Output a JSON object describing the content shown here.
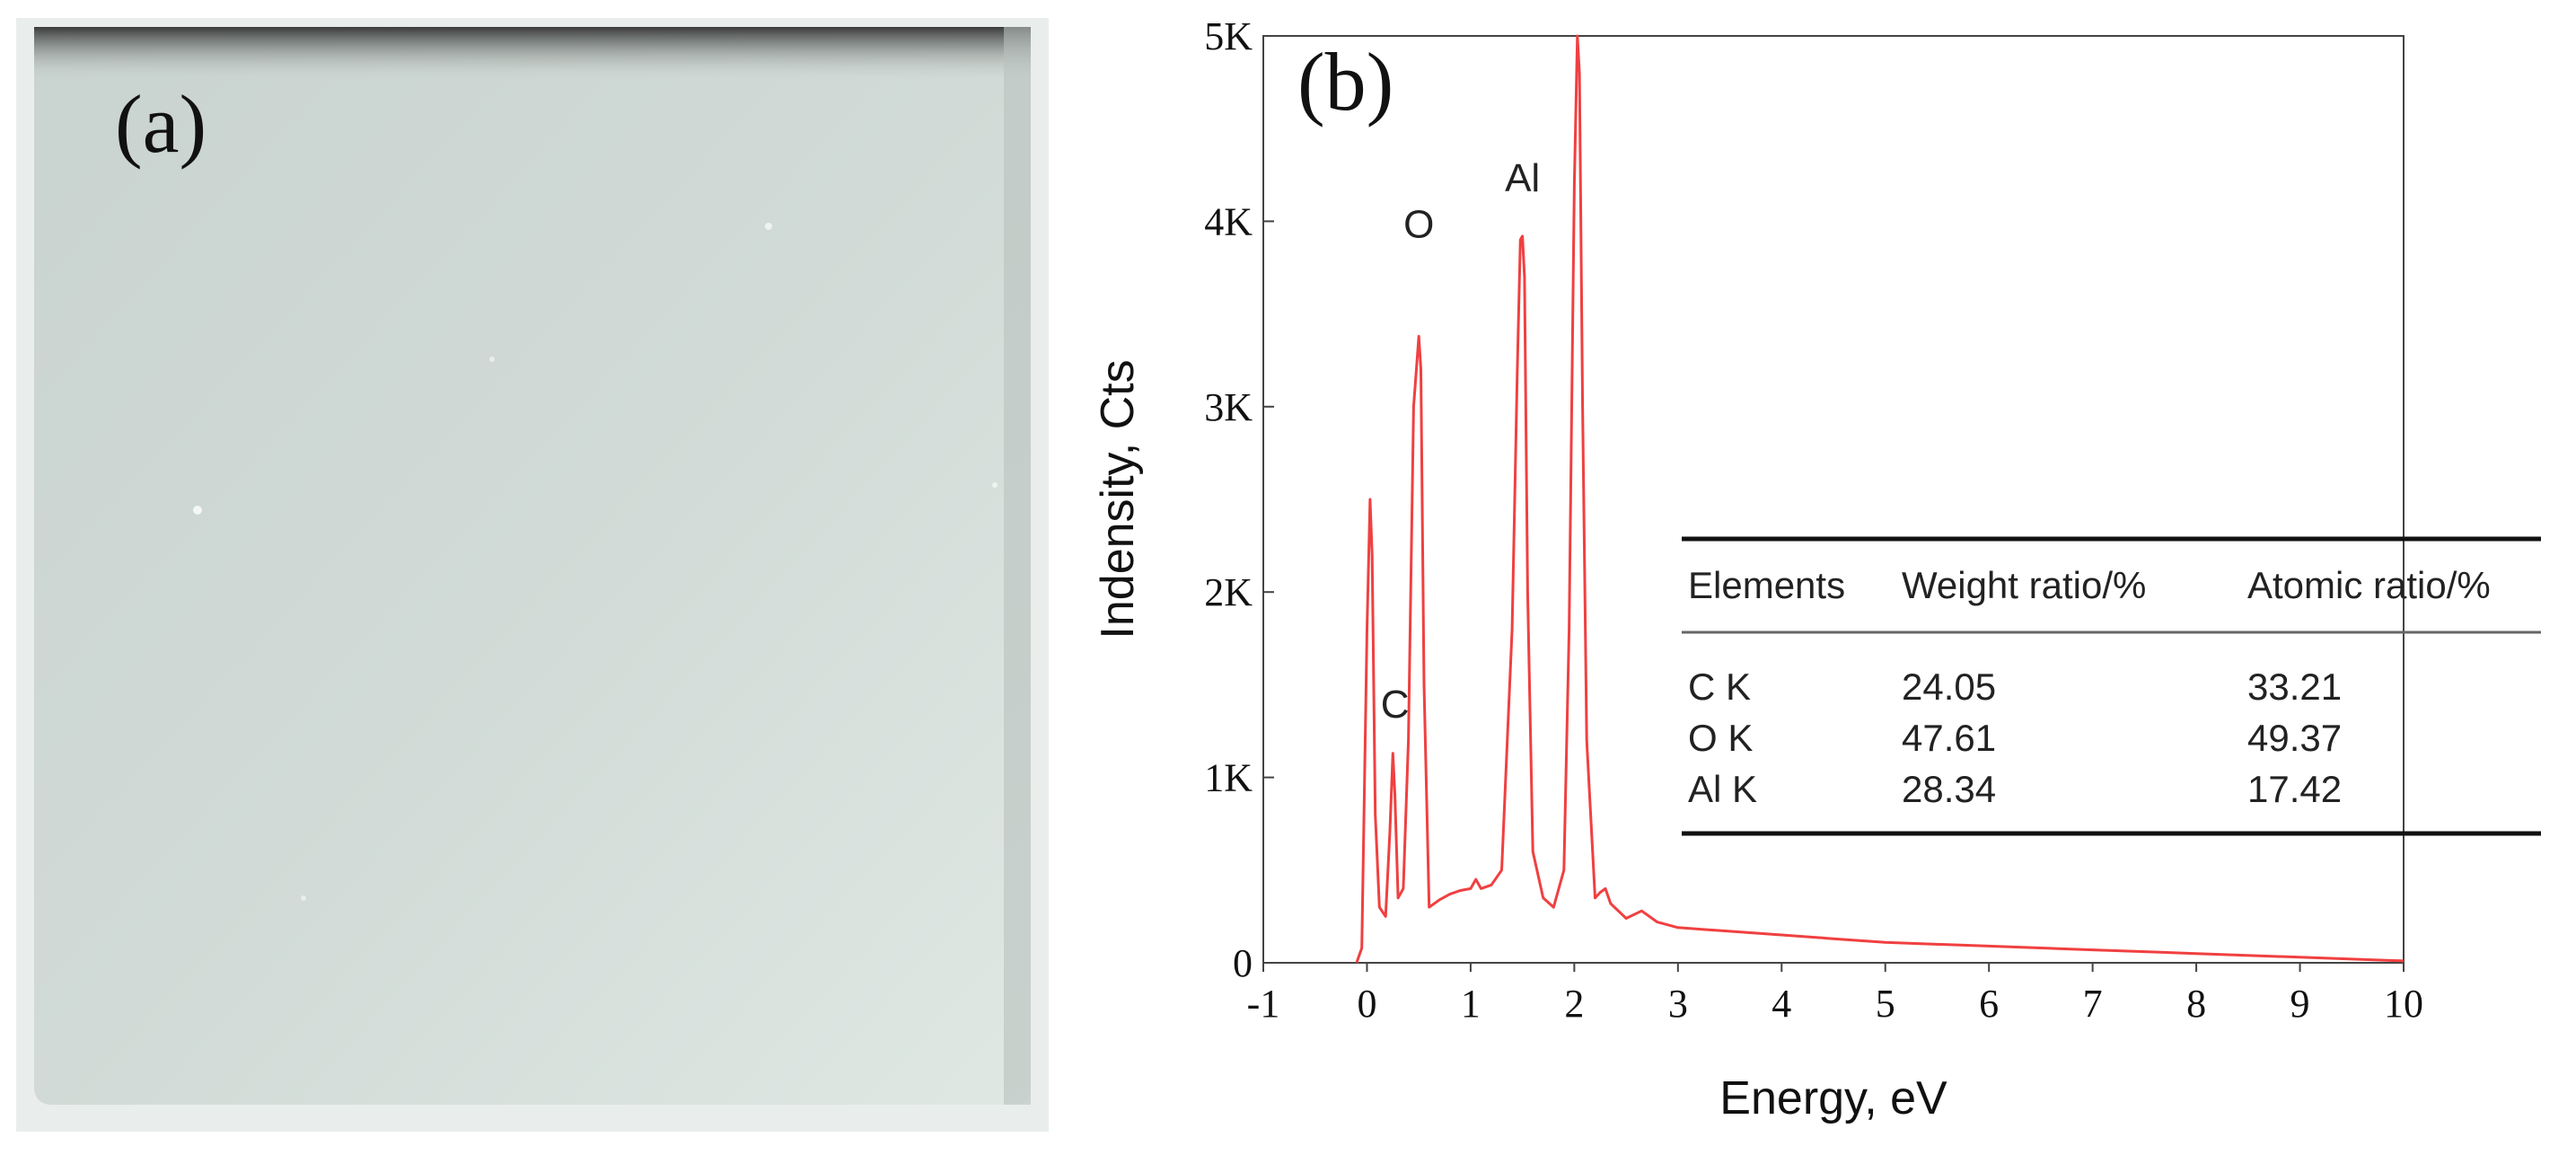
{
  "panel_a": {
    "label": "(a)"
  },
  "chart_data": {
    "type": "line",
    "panel_label": "(b)",
    "title": "",
    "xlabel": "Energy, eV",
    "ylabel": "Indensity, Cts",
    "xlim": [
      -1,
      10
    ],
    "ylim": [
      0,
      5000
    ],
    "x_ticks": [
      "-1",
      "0",
      "1",
      "2",
      "3",
      "4",
      "5",
      "6",
      "7",
      "8",
      "9",
      "10"
    ],
    "y_ticks": [
      "0",
      "1K",
      "2K",
      "3K",
      "4K",
      "5K"
    ],
    "line_color": "#f04040",
    "grid": false,
    "series": [
      {
        "x": [
          -0.1,
          -0.05,
          0.0,
          0.03,
          0.05,
          0.08,
          0.12,
          0.18,
          0.22,
          0.25,
          0.27,
          0.3,
          0.35,
          0.4,
          0.45,
          0.5,
          0.52,
          0.55,
          0.6,
          0.7,
          0.8,
          0.9,
          1.0,
          1.05,
          1.1,
          1.2,
          1.3,
          1.4,
          1.45,
          1.48,
          1.5,
          1.52,
          1.55,
          1.6,
          1.7,
          1.8,
          1.9,
          1.95,
          2.0,
          2.03,
          2.05,
          2.08,
          2.12,
          2.2,
          2.25,
          2.3,
          2.35,
          2.5,
          2.65,
          2.8,
          3.0,
          3.5,
          4.0,
          4.5,
          5.0,
          6.0,
          7.0,
          8.0,
          9.0,
          9.5,
          10.0
        ],
        "y": [
          0,
          80,
          1800,
          2500,
          2200,
          800,
          300,
          250,
          700,
          1130,
          900,
          350,
          400,
          1200,
          3000,
          3380,
          3200,
          1500,
          300,
          340,
          370,
          390,
          400,
          450,
          400,
          420,
          500,
          1800,
          3200,
          3900,
          3920,
          3700,
          2000,
          600,
          350,
          300,
          500,
          1800,
          4200,
          5000,
          4800,
          3000,
          1200,
          350,
          380,
          400,
          320,
          240,
          280,
          220,
          190,
          170,
          150,
          130,
          110,
          90,
          70,
          50,
          30,
          20,
          10
        ]
      }
    ],
    "peak_labels": [
      {
        "text": "C",
        "x": 0.27,
        "y": 1130
      },
      {
        "text": "O",
        "x": 0.5,
        "y": 3380
      },
      {
        "text": "Al",
        "x": 1.5,
        "y": 3920
      }
    ],
    "table": {
      "headers": [
        "Elements",
        "Weight ratio/%",
        "Atomic ratio/%"
      ],
      "rows": [
        [
          "C K",
          "24.05",
          "33.21"
        ],
        [
          "O K",
          "47.61",
          "49.37"
        ],
        [
          "Al K",
          "28.34",
          "17.42"
        ]
      ]
    }
  }
}
